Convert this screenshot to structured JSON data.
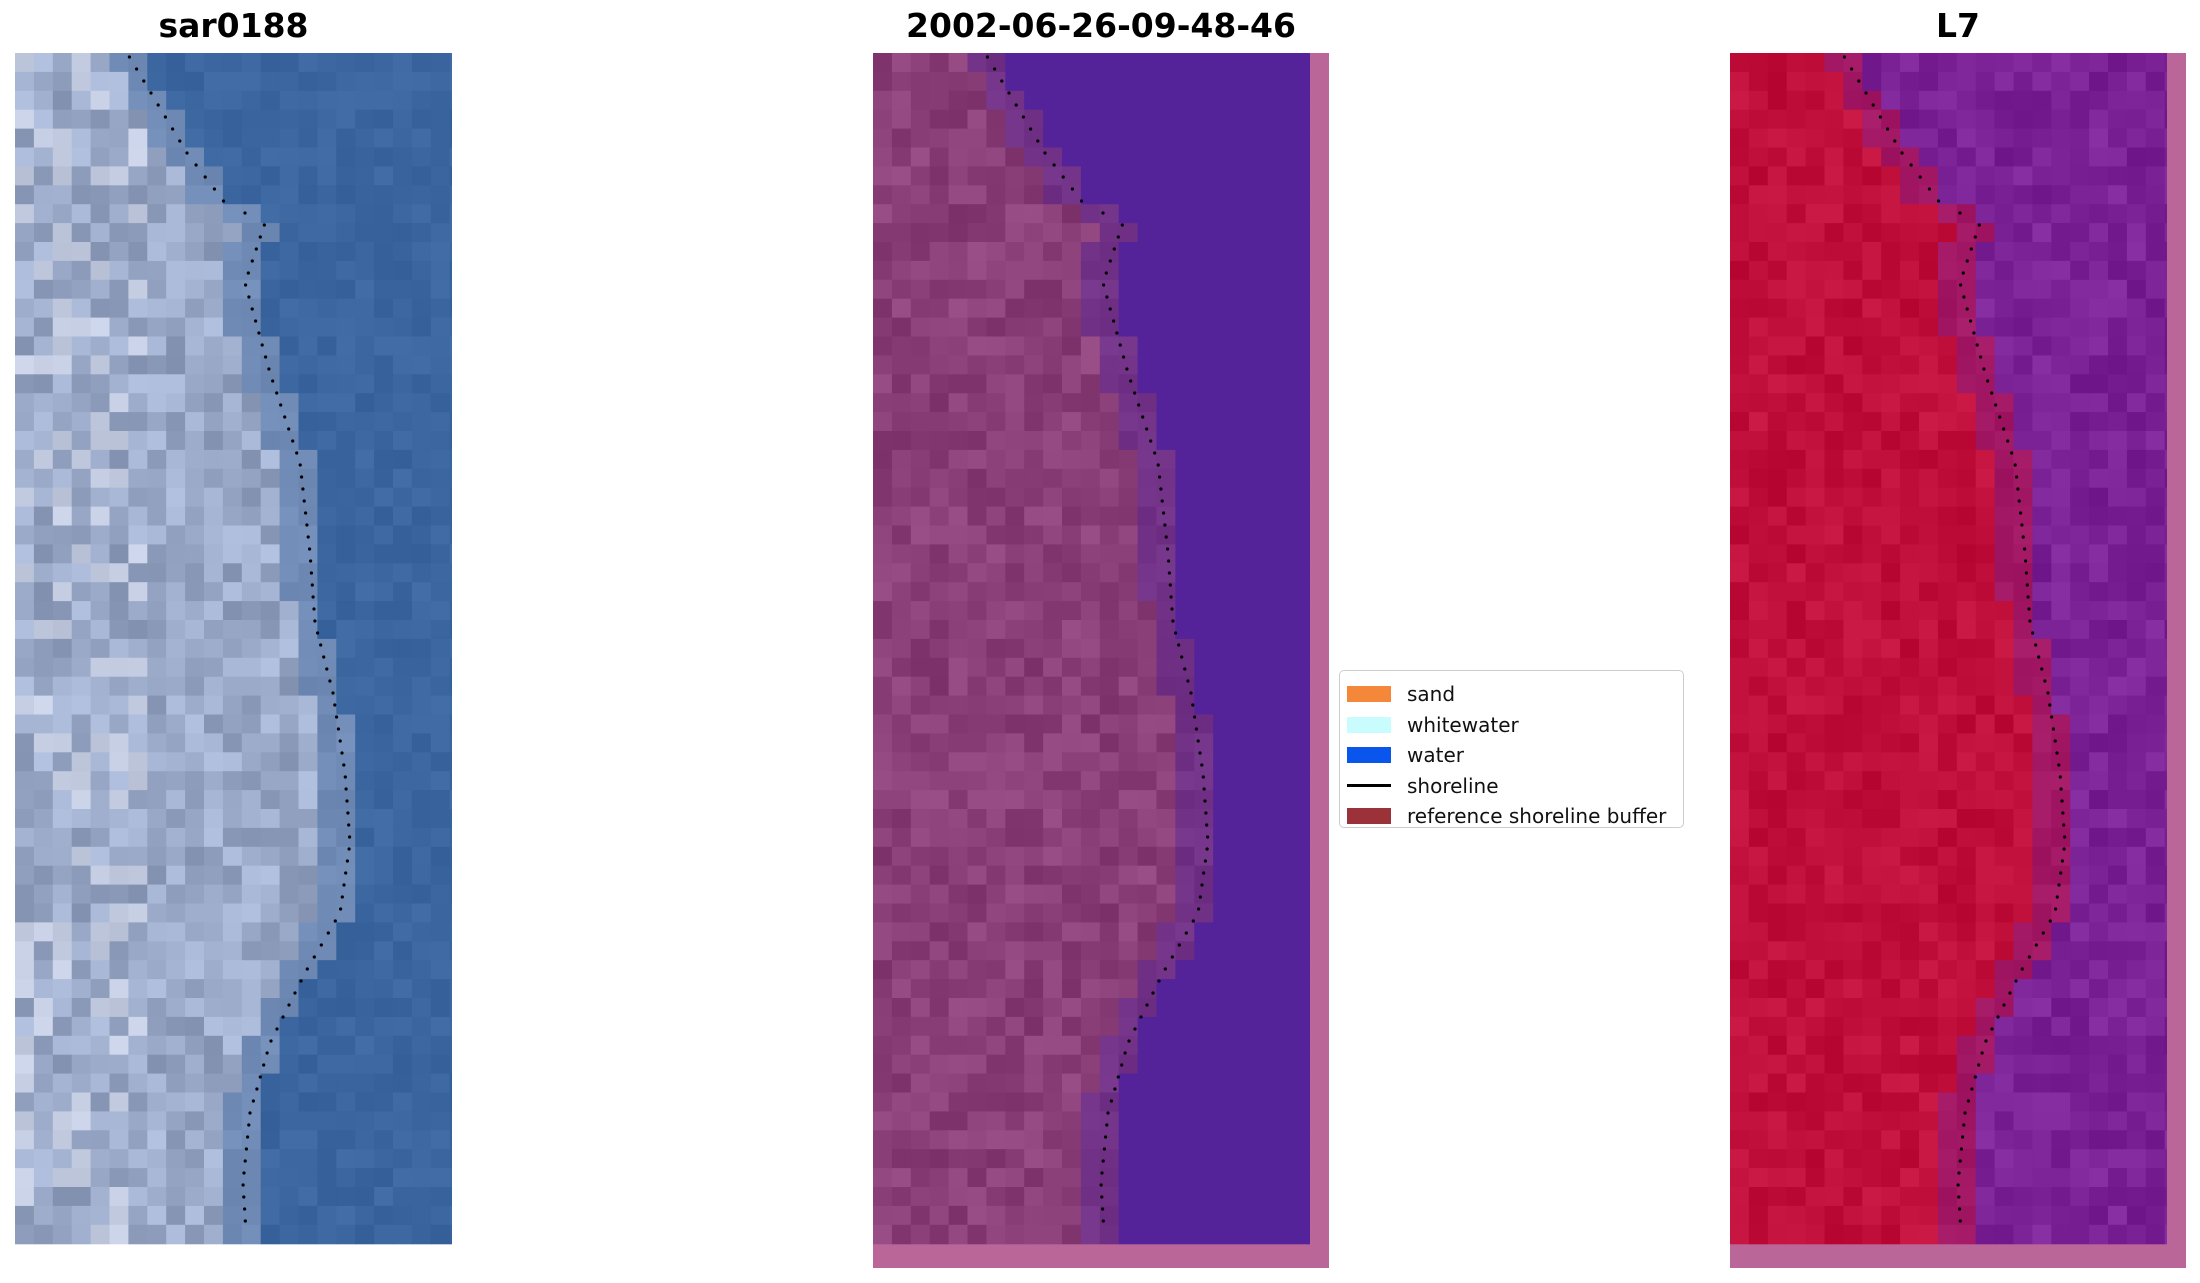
{
  "panels": [
    {
      "title": "sar0188"
    },
    {
      "title": "2002-06-26-09-48-46"
    },
    {
      "title": "L7"
    }
  ],
  "legend": {
    "items": [
      {
        "label": "sand",
        "color": "#f5873a",
        "icon": "filled-square"
      },
      {
        "label": "whitewater",
        "color": "#c9fdfd",
        "icon": "filled-square"
      },
      {
        "label": "water",
        "color": "#0a56ed",
        "icon": "filled-square"
      },
      {
        "label": "shoreline",
        "color": "#000000",
        "icon": "line"
      },
      {
        "label": "reference shoreline buffer",
        "color": "#9b3139",
        "icon": "filled-square"
      }
    ]
  },
  "colors": {
    "rgb_water": "#3b66a0",
    "rgb_land": "#9ba9c8",
    "classified_water": "#54239a",
    "classified_land": "#8b3f78",
    "classified_border": "#bb6699",
    "ndwi_water": "#7b2296",
    "ndwi_land": "#c10f3c",
    "ndwi_border": "#bb6699",
    "shoreline_dots": "#000000"
  }
}
